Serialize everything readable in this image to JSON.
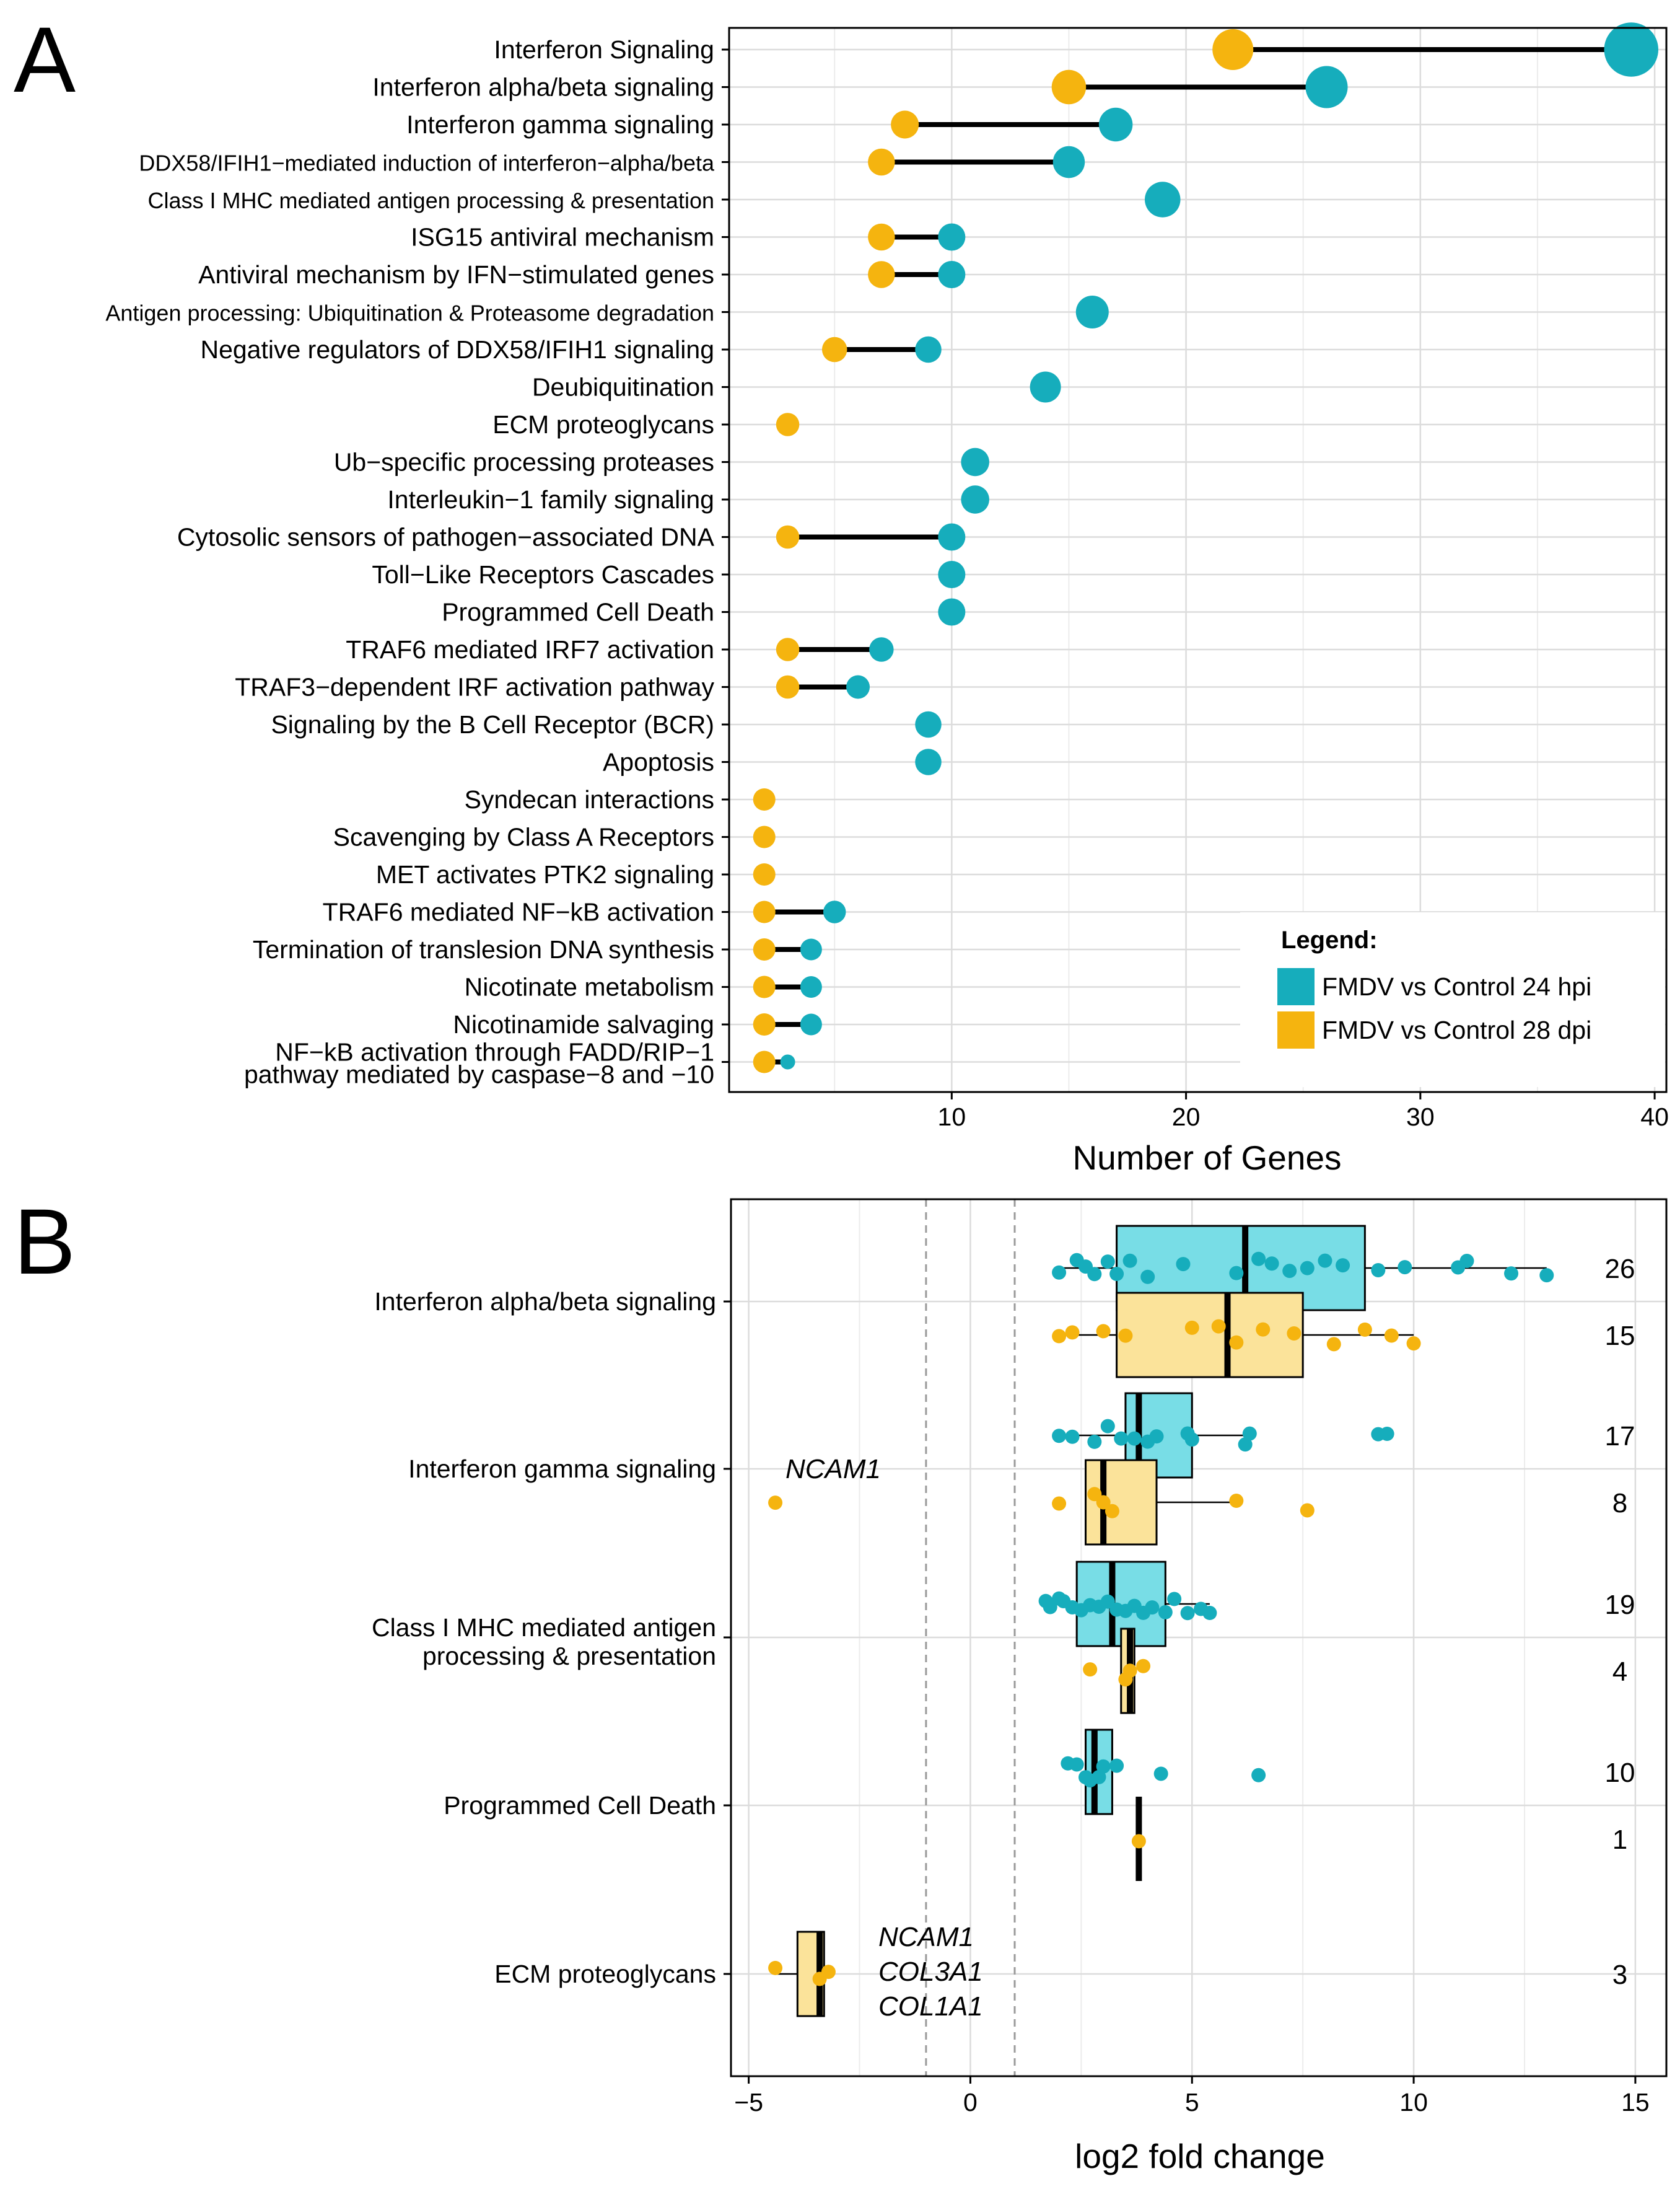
{
  "panel_labels": {
    "a": "A",
    "b": "B"
  },
  "colors": {
    "teal": "#16adbc",
    "gold": "#f5b40f",
    "teal_box": "#78dde6",
    "gold_box": "#fbe39a",
    "grid": "#dcdcdc"
  },
  "chart_data": [
    {
      "type": "dumbbell",
      "panel": "A",
      "xlabel": "Number of Genes",
      "xlim": [
        0.5,
        40.5
      ],
      "xticks": [
        "10",
        "20",
        "30",
        "40"
      ],
      "xtick_values": [
        10,
        20,
        30,
        40
      ],
      "legend": {
        "title": "Legend:",
        "entries": [
          "FMDV vs Control 24 hpi",
          "FMDV vs Control 28 dpi"
        ],
        "position": "bottom-right"
      },
      "series_names": [
        "FMDV vs Control 24 hpi",
        "FMDV vs Control 28 dpi"
      ],
      "categories": [
        {
          "label": [
            "Interferon Signaling"
          ],
          "hpi24": 39,
          "dpi28": 22
        },
        {
          "label": [
            "Interferon alpha/beta signaling"
          ],
          "hpi24": 26,
          "dpi28": 15
        },
        {
          "label": [
            "Interferon gamma signaling"
          ],
          "hpi24": 17,
          "dpi28": 8
        },
        {
          "label": [
            "DDX58/IFIH1−mediated induction of interferon−alpha/beta"
          ],
          "hpi24": 15,
          "dpi28": 7
        },
        {
          "label": [
            "Class I MHC mediated antigen processing & presentation"
          ],
          "hpi24": 19,
          "dpi28": null
        },
        {
          "label": [
            "ISG15 antiviral mechanism"
          ],
          "hpi24": 10,
          "dpi28": 7
        },
        {
          "label": [
            "Antiviral mechanism by IFN−stimulated genes"
          ],
          "hpi24": 10,
          "dpi28": 7
        },
        {
          "label": [
            "Antigen processing: Ubiquitination & Proteasome degradation"
          ],
          "hpi24": 16,
          "dpi28": null
        },
        {
          "label": [
            "Negative regulators of DDX58/IFIH1 signaling"
          ],
          "hpi24": 9,
          "dpi28": 5
        },
        {
          "label": [
            "Deubiquitination"
          ],
          "hpi24": 14,
          "dpi28": null
        },
        {
          "label": [
            "ECM proteoglycans"
          ],
          "hpi24": null,
          "dpi28": 3
        },
        {
          "label": [
            "Ub−specific processing proteases"
          ],
          "hpi24": 11,
          "dpi28": null
        },
        {
          "label": [
            "Interleukin−1 family signaling"
          ],
          "hpi24": 11,
          "dpi28": null
        },
        {
          "label": [
            "Cytosolic sensors of pathogen−associated DNA"
          ],
          "hpi24": 10,
          "dpi28": 3
        },
        {
          "label": [
            "Toll−Like Receptors Cascades"
          ],
          "hpi24": 10,
          "dpi28": null
        },
        {
          "label": [
            "Programmed Cell Death"
          ],
          "hpi24": 10,
          "dpi28": null
        },
        {
          "label": [
            "TRAF6 mediated IRF7 activation"
          ],
          "hpi24": 7,
          "dpi28": 3
        },
        {
          "label": [
            "TRAF3−dependent IRF activation pathway"
          ],
          "hpi24": 6,
          "dpi28": 3
        },
        {
          "label": [
            "Signaling by the B Cell Receptor (BCR)"
          ],
          "hpi24": 9,
          "dpi28": null
        },
        {
          "label": [
            "Apoptosis"
          ],
          "hpi24": 9,
          "dpi28": null
        },
        {
          "label": [
            "Syndecan interactions"
          ],
          "hpi24": null,
          "dpi28": 2
        },
        {
          "label": [
            "Scavenging by Class A Receptors"
          ],
          "hpi24": null,
          "dpi28": 2
        },
        {
          "label": [
            "MET activates PTK2 signaling"
          ],
          "hpi24": null,
          "dpi28": 2
        },
        {
          "label": [
            "TRAF6 mediated NF−kB activation"
          ],
          "hpi24": 5,
          "dpi28": 2
        },
        {
          "label": [
            "Termination of translesion DNA synthesis"
          ],
          "hpi24": 4,
          "dpi28": 2
        },
        {
          "label": [
            "Nicotinate metabolism"
          ],
          "hpi24": 4,
          "dpi28": 2
        },
        {
          "label": [
            "Nicotinamide salvaging"
          ],
          "hpi24": 4,
          "dpi28": 2
        },
        {
          "label": [
            "NF−kB activation through FADD/RIP−1",
            "pathway mediated by caspase−8 and −10"
          ],
          "hpi24": 3,
          "dpi28": 2
        }
      ]
    },
    {
      "type": "boxplot",
      "panel": "B",
      "xlabel": "log2 fold change",
      "xlim": [
        -5.4,
        15.7
      ],
      "xticks": [
        "−5",
        "0",
        "5",
        "10",
        "15"
      ],
      "xtick_values": [
        -5,
        0,
        5,
        10,
        15
      ],
      "reference_lines": [
        -1,
        1
      ],
      "groups": [
        {
          "label": [
            "Interferon alpha/beta signaling"
          ],
          "boxes": [
            {
              "series": "24 hpi",
              "count": "26",
              "min": 2.0,
              "q1": 3.3,
              "median": 6.2,
              "q3": 8.9,
              "max": 13.0,
              "points": [
                2.0,
                2.4,
                2.6,
                2.8,
                3.1,
                3.3,
                3.6,
                4.0,
                4.8,
                6.0,
                6.5,
                6.8,
                7.2,
                7.6,
                8.0,
                8.4,
                9.2,
                9.8,
                11.0,
                11.2,
                12.2,
                13.0
              ]
            },
            {
              "series": "28 dpi",
              "count": "15",
              "min": 2.0,
              "q1": 3.3,
              "median": 5.8,
              "q3": 7.5,
              "max": 10.0,
              "points": [
                2.0,
                2.3,
                3.0,
                3.5,
                5.0,
                5.6,
                6.0,
                6.6,
                7.3,
                8.2,
                8.9,
                9.5,
                10.0
              ]
            }
          ]
        },
        {
          "label": [
            "Interferon gamma signaling"
          ],
          "annotation": [
            "NCAM1"
          ],
          "boxes": [
            {
              "series": "24 hpi",
              "count": "17",
              "min": 2.0,
              "q1": 3.5,
              "median": 3.8,
              "q3": 5.0,
              "max": 6.3,
              "points": [
                2.0,
                2.3,
                2.8,
                3.1,
                3.4,
                3.7,
                4.0,
                4.2,
                4.9,
                5.0,
                6.2,
                6.3,
                9.2,
                9.4
              ]
            },
            {
              "series": "28 dpi",
              "count": "8",
              "min": 2.6,
              "q1": 2.6,
              "median": 3.0,
              "q3": 4.2,
              "max": 6.0,
              "points": [
                -4.4,
                2.0,
                2.8,
                3.0,
                3.2,
                6.0,
                7.6
              ]
            }
          ]
        },
        {
          "label": [
            "Class I MHC mediated antigen",
            "processing & presentation"
          ],
          "boxes": [
            {
              "series": "24 hpi",
              "count": "19",
              "min": 1.7,
              "q1": 2.4,
              "median": 3.2,
              "q3": 4.4,
              "max": 5.4,
              "points": [
                1.7,
                1.8,
                2.0,
                2.1,
                2.3,
                2.5,
                2.7,
                2.9,
                3.1,
                3.3,
                3.5,
                3.7,
                3.9,
                4.1,
                4.4,
                4.6,
                4.9,
                5.2,
                5.4
              ]
            },
            {
              "series": "28 dpi",
              "count": "4",
              "min": 3.4,
              "q1": 3.4,
              "median": 3.6,
              "q3": 3.7,
              "max": 3.7,
              "points": [
                2.7,
                3.5,
                3.6,
                3.9
              ]
            }
          ]
        },
        {
          "label": [
            "Programmed Cell Death"
          ],
          "boxes": [
            {
              "series": "24 hpi",
              "count": "10",
              "min": 2.6,
              "q1": 2.6,
              "median": 2.8,
              "q3": 3.2,
              "max": 3.2,
              "points": [
                2.2,
                2.4,
                2.6,
                2.7,
                2.9,
                3.0,
                3.3,
                4.3,
                6.5
              ]
            },
            {
              "series": "28 dpi",
              "count": "1",
              "min": 3.8,
              "q1": 3.8,
              "median": 3.8,
              "q3": 3.8,
              "max": 3.8,
              "points": [
                3.8
              ]
            }
          ]
        },
        {
          "label": [
            "ECM proteoglycans"
          ],
          "annotation": [
            "NCAM1",
            "COL3A1",
            "COL1A1"
          ],
          "boxes": [
            {
              "series": "28 dpi",
              "count": "3",
              "min": -4.4,
              "q1": -3.9,
              "median": -3.4,
              "q3": -3.3,
              "max": -3.2,
              "points": [
                -4.4,
                -3.4,
                -3.2
              ]
            }
          ]
        }
      ]
    }
  ]
}
